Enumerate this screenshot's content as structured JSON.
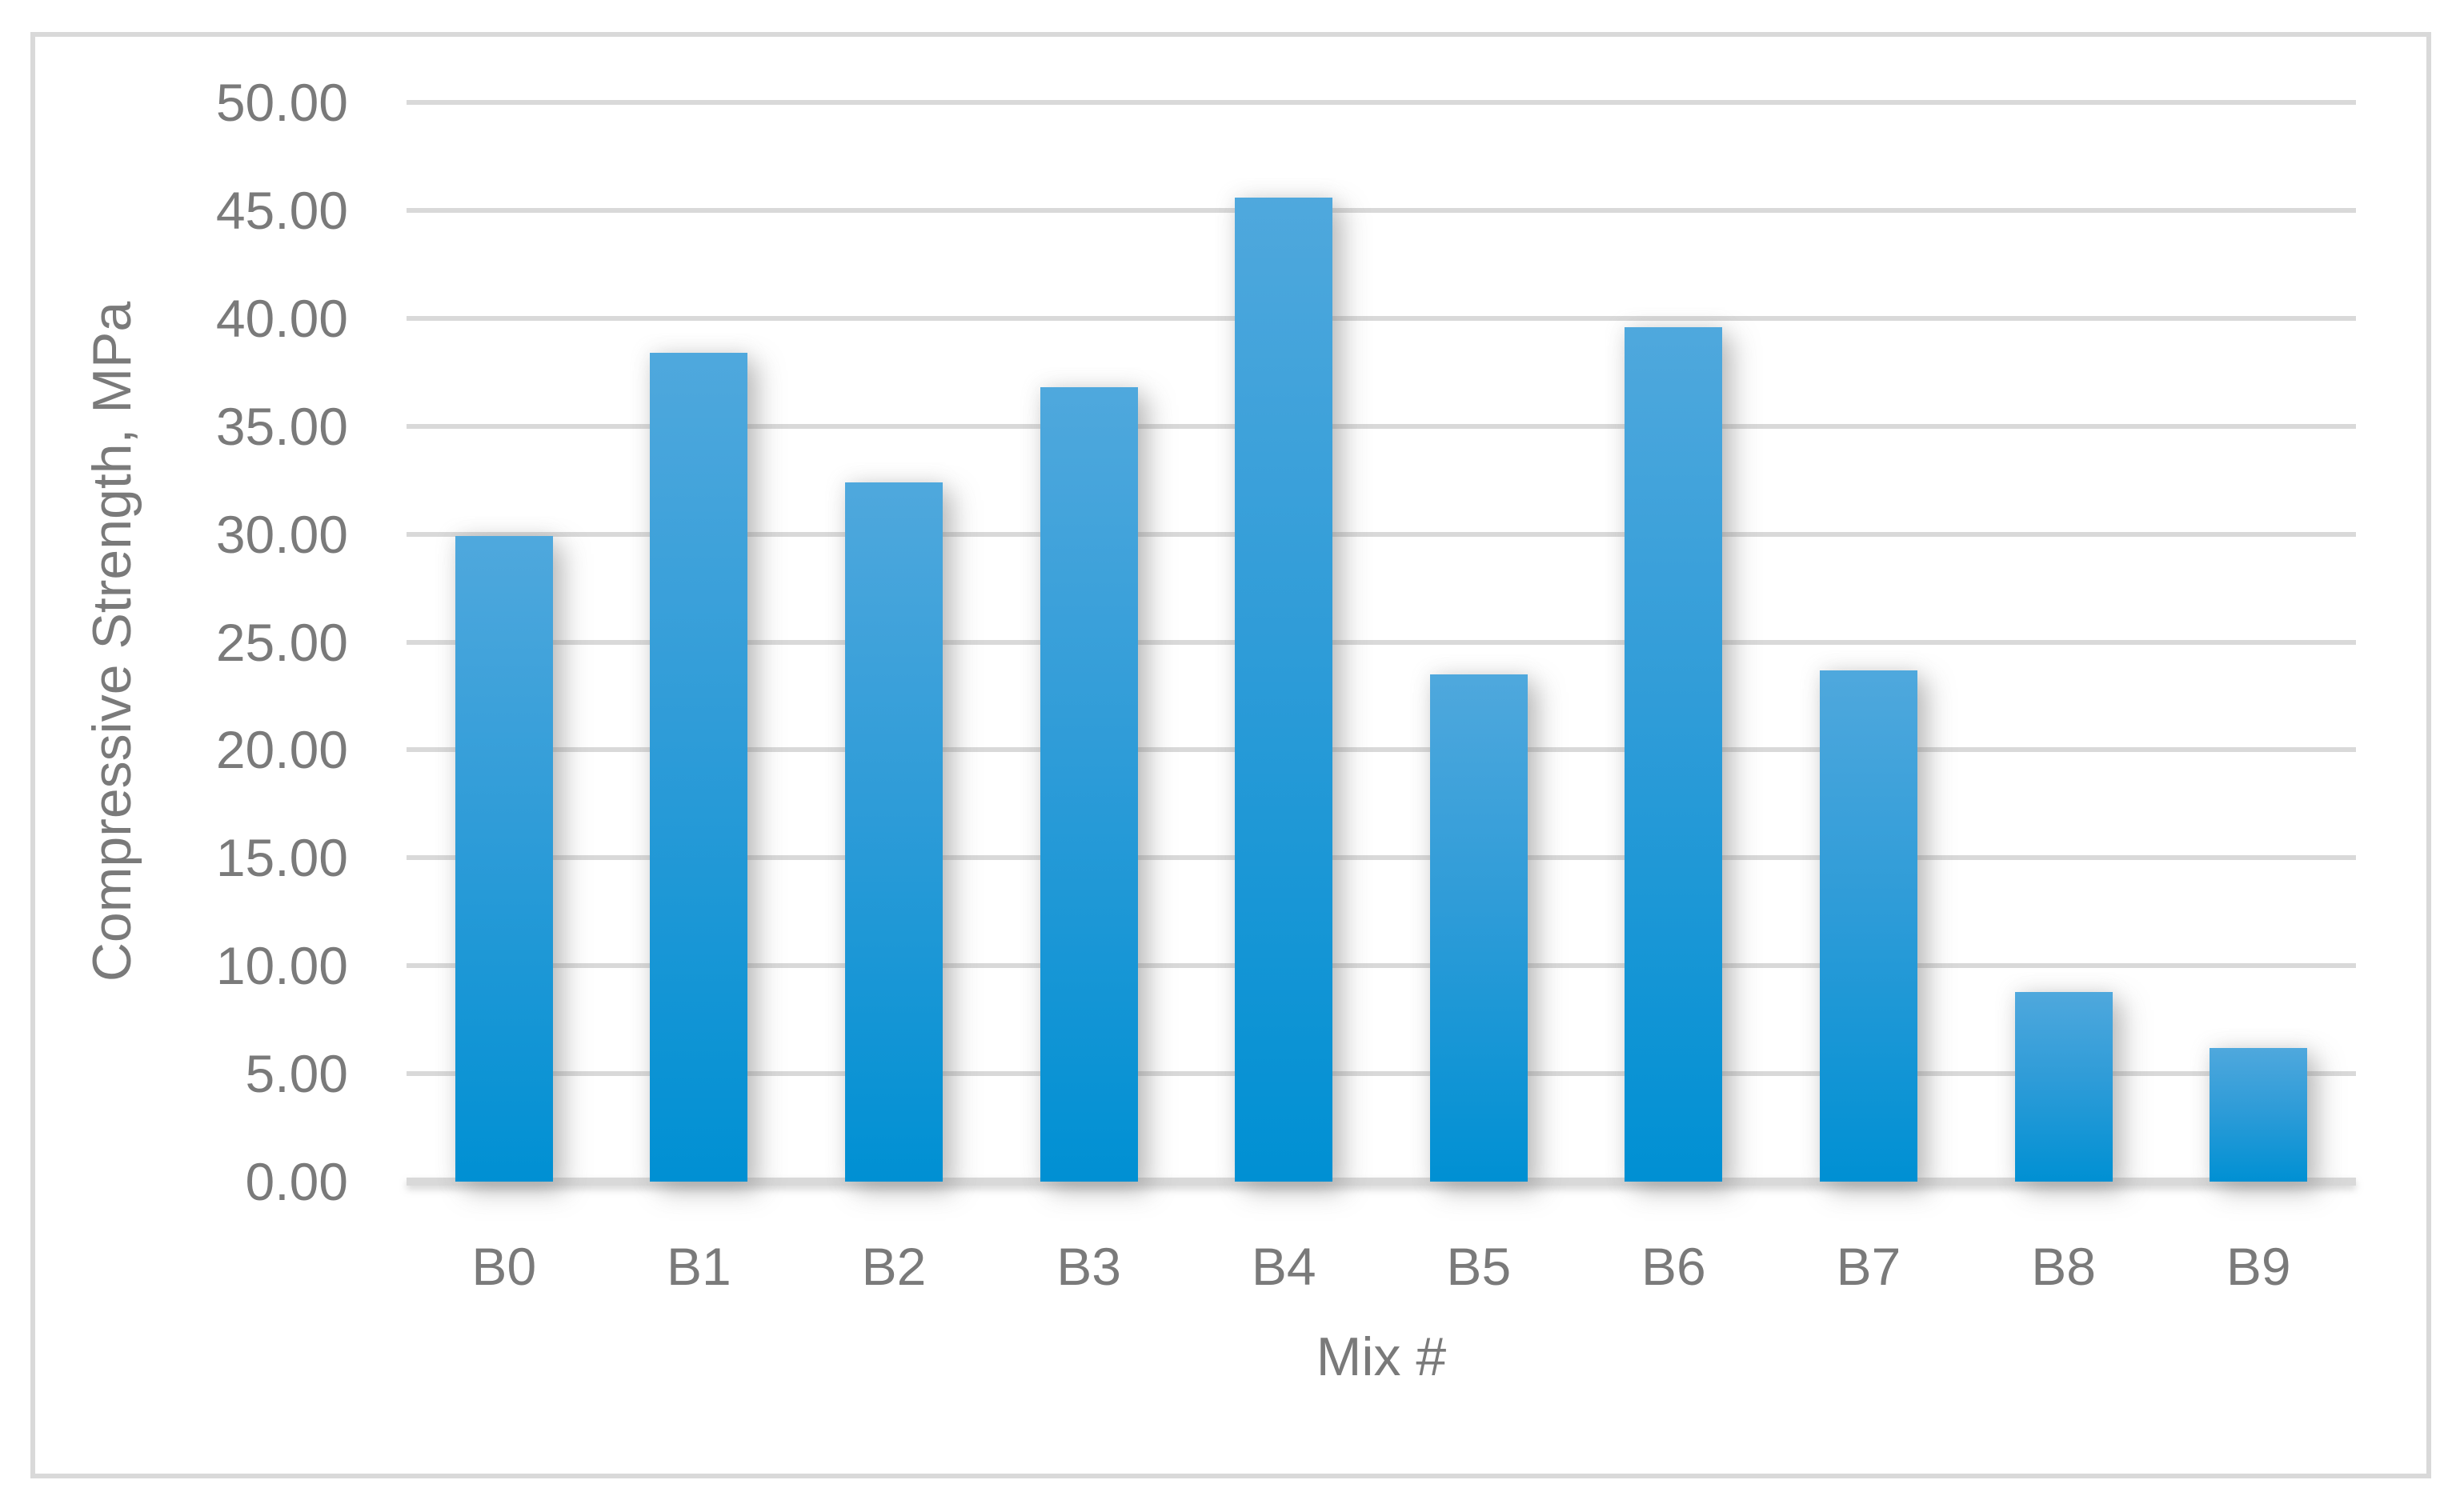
{
  "chart_data": {
    "type": "bar",
    "categories": [
      "B0",
      "B1",
      "B2",
      "B3",
      "B4",
      "B5",
      "B6",
      "B7",
      "B8",
      "B9"
    ],
    "values": [
      29.9,
      38.4,
      32.4,
      36.8,
      45.6,
      23.5,
      39.6,
      23.7,
      8.8,
      6.2
    ],
    "title": "",
    "xlabel": "Mix #",
    "ylabel": "Compressive Strength, MPa",
    "ylim": [
      0,
      50
    ],
    "ytick_step": 5,
    "ytick_decimals": 2,
    "grid": true,
    "legend": false,
    "bar_color_top": "#4fa8dd",
    "bar_color_bottom": "#0090d3"
  },
  "colors": {
    "gridline": "#d9d9d9",
    "axis_line": "#d9d9d9",
    "frame_border": "#d9d9d9",
    "text": "#7a7a7a",
    "background": "#ffffff"
  }
}
